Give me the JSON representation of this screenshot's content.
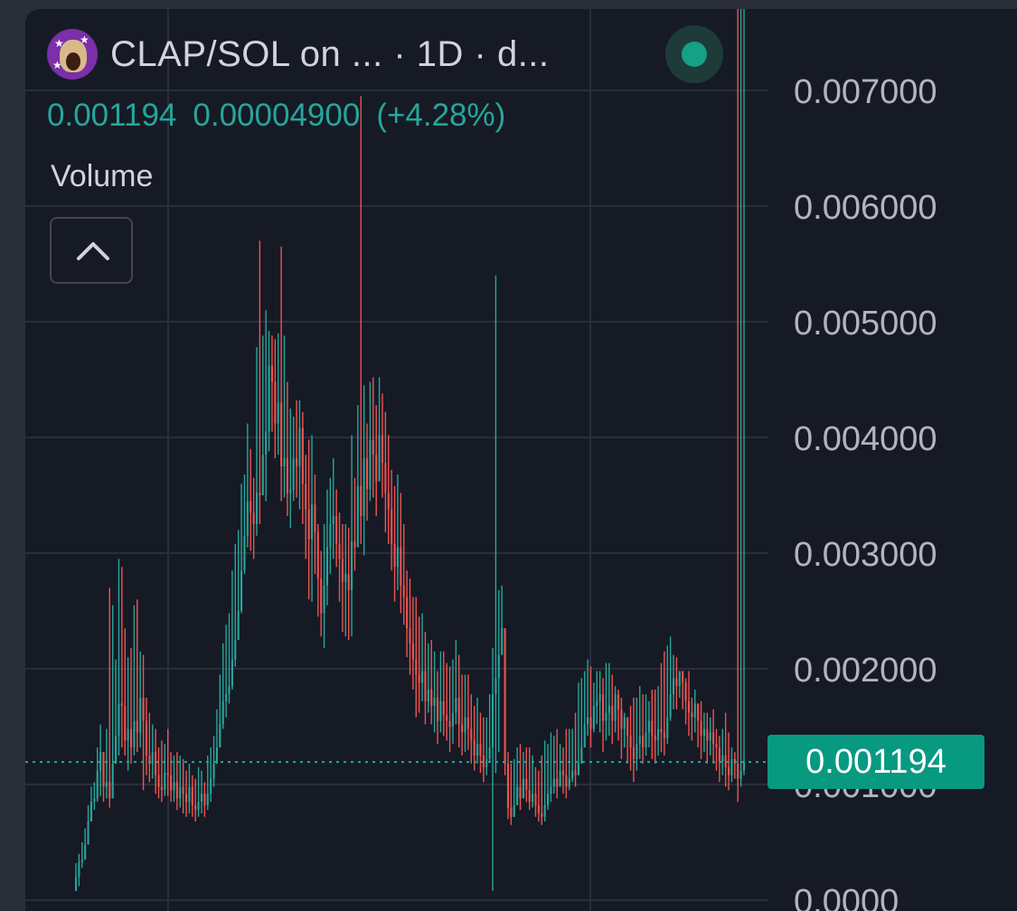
{
  "header": {
    "title": "CLAP/SOL on ... · 1D · d...",
    "logo_icon": "clap-token-logo",
    "live_indicator_icon": "live-status-dot"
  },
  "ohlc": {
    "last_price": "0.001194",
    "change": "0.00004900",
    "change_pct": "(+4.28%)"
  },
  "volume_label": "Volume",
  "collapse_icon": "chevron-up-icon",
  "colors": {
    "background": "#161a25",
    "up": "#26a69a",
    "down": "#ef5350",
    "grid": "#2a2e39",
    "axis_text": "#b2b5be",
    "price_tag": "#089981"
  },
  "chart_data": {
    "type": "candlestick",
    "title": "CLAP/SOL on ... · 1D · d...",
    "xlabel": "",
    "ylabel": "",
    "ylim": [
      0,
      0.0072
    ],
    "y_ticks": [
      "0.007000",
      "0.006000",
      "0.005000",
      "0.004000",
      "0.003000",
      "0.002000",
      "0.001000",
      "0.0000"
    ],
    "current_price": 0.001194,
    "current_price_label": "0.001194",
    "grid": true,
    "series": [
      {
        "values": [
          0.0002,
          0.00033,
          0.00035,
          0.00048,
          0.00068,
          0.00085,
          0.00088,
          0.00112,
          0.00128,
          0.00098,
          0.00102,
          0.00088,
          0.00118,
          0.00142,
          0.0017,
          0.00168,
          0.00138,
          0.00148,
          0.00132,
          0.00155,
          0.00145,
          0.00175,
          0.00155,
          0.00125,
          0.00118,
          0.00128,
          0.00108,
          0.00098,
          0.00095,
          0.0011,
          0.00108,
          0.00095,
          0.00102,
          0.00088,
          0.00098,
          0.00092,
          0.00085,
          0.00098,
          0.00082,
          0.00078,
          0.00085,
          0.00092,
          0.00082,
          0.00092,
          0.00105,
          0.00118,
          0.00132,
          0.00152,
          0.00172,
          0.00178,
          0.00185,
          0.00208,
          0.00225,
          0.0025,
          0.00285,
          0.00315,
          0.00345,
          0.00335,
          0.00325,
          0.00352,
          0.0035,
          0.00385,
          0.00405,
          0.00462,
          0.00448,
          0.00412,
          0.0043,
          0.00375,
          0.00382,
          0.00352,
          0.00355,
          0.00382,
          0.00375,
          0.00408,
          0.0036,
          0.00338,
          0.00312,
          0.00342,
          0.00318,
          0.00278,
          0.00248,
          0.00272,
          0.00305,
          0.00325,
          0.00332,
          0.00308,
          0.00295,
          0.00275,
          0.00282,
          0.00268,
          0.0031,
          0.00305,
          0.00358,
          0.00332,
          0.00382,
          0.00355,
          0.00398,
          0.00385,
          0.00362,
          0.00402,
          0.00378,
          0.00352,
          0.00338,
          0.00308,
          0.00288,
          0.00305,
          0.00272,
          0.00262,
          0.00235,
          0.00222,
          0.00208,
          0.00195,
          0.00188,
          0.00198,
          0.00172,
          0.00182,
          0.00168,
          0.00175,
          0.00155,
          0.00172,
          0.0016,
          0.00155,
          0.0015,
          0.00162,
          0.00175,
          0.00152,
          0.00145,
          0.00158,
          0.00148,
          0.00138,
          0.00125,
          0.00135,
          0.00125,
          0.00115,
          0.00122,
          0.00132,
          0.00178,
          0.00192,
          0.00212,
          0.00235,
          0.00118,
          0.0008,
          0.00072,
          0.00082,
          0.00098,
          0.00088,
          0.00105,
          0.00095,
          0.00085,
          0.00092,
          0.00082,
          0.00075,
          0.00072,
          0.00082,
          0.00092,
          0.00098,
          0.00105,
          0.00098,
          0.00112,
          0.00108,
          0.00098,
          0.00105,
          0.00112,
          0.00108,
          0.00118,
          0.00132,
          0.00152,
          0.00158,
          0.00148,
          0.00168,
          0.00172,
          0.00178,
          0.00155,
          0.00162,
          0.00168,
          0.00155,
          0.00178,
          0.00165,
          0.00148,
          0.00158,
          0.00142,
          0.00132,
          0.00122,
          0.00135,
          0.00142,
          0.00132,
          0.00145,
          0.00155,
          0.00142,
          0.00138,
          0.00148,
          0.00145,
          0.0014,
          0.00158,
          0.00178,
          0.00192,
          0.00185,
          0.00198,
          0.00188,
          0.00172,
          0.00162,
          0.00158,
          0.0017,
          0.00155,
          0.00142,
          0.00148,
          0.00138,
          0.00145,
          0.00135,
          0.00132,
          0.0012,
          0.00125,
          0.00115,
          0.00108,
          0.00122,
          0.00118,
          0.00105,
          0.00112,
          0.001194
        ],
        "highs": [
          0.00032,
          0.0004,
          0.0005,
          0.00062,
          0.00082,
          0.00098,
          0.00102,
          0.00132,
          0.00152,
          0.00118,
          0.00148,
          0.0027,
          0.00255,
          0.00208,
          0.00295,
          0.00288,
          0.00235,
          0.0021,
          0.00218,
          0.00255,
          0.0026,
          0.00215,
          0.00212,
          0.00175,
          0.00162,
          0.00152,
          0.00148,
          0.00132,
          0.00138,
          0.00135,
          0.00148,
          0.00128,
          0.00125,
          0.00128,
          0.00125,
          0.00122,
          0.00112,
          0.00118,
          0.00108,
          0.00105,
          0.00115,
          0.00112,
          0.00102,
          0.00125,
          0.00132,
          0.00142,
          0.00165,
          0.00195,
          0.00222,
          0.00238,
          0.00248,
          0.00285,
          0.00308,
          0.0032,
          0.0036,
          0.00368,
          0.00412,
          0.0039,
          0.00365,
          0.00478,
          0.0057,
          0.00488,
          0.0051,
          0.00492,
          0.00488,
          0.00485,
          0.0049,
          0.00565,
          0.00488,
          0.00448,
          0.00425,
          0.00418,
          0.00432,
          0.00432,
          0.00422,
          0.00385,
          0.00398,
          0.00402,
          0.00368,
          0.00325,
          0.00302,
          0.00325,
          0.00355,
          0.00365,
          0.00382,
          0.00355,
          0.00335,
          0.00325,
          0.00325,
          0.00322,
          0.00402,
          0.00365,
          0.00428,
          0.00695,
          0.00445,
          0.00412,
          0.00448,
          0.00452,
          0.00428,
          0.00452,
          0.00438,
          0.00422,
          0.00402,
          0.00372,
          0.00358,
          0.00368,
          0.00352,
          0.00325,
          0.00285,
          0.00278,
          0.00262,
          0.00262,
          0.00245,
          0.00248,
          0.00232,
          0.00222,
          0.00225,
          0.00215,
          0.00198,
          0.00215,
          0.00215,
          0.00205,
          0.00202,
          0.00208,
          0.00225,
          0.00212,
          0.00195,
          0.00195,
          0.00195,
          0.00178,
          0.00168,
          0.00175,
          0.00162,
          0.00158,
          0.00158,
          0.00178,
          0.00218,
          0.0054,
          0.00268,
          0.00272,
          0.00148,
          0.00128,
          0.00118,
          0.00122,
          0.00132,
          0.00135,
          0.00128,
          0.00132,
          0.00132,
          0.00125,
          0.00115,
          0.00112,
          0.00125,
          0.00138,
          0.00135,
          0.00145,
          0.00142,
          0.00148,
          0.00135,
          0.00132,
          0.00148,
          0.00148,
          0.00148,
          0.00162,
          0.00188,
          0.00192,
          0.00198,
          0.00208,
          0.00202,
          0.00188,
          0.00198,
          0.00198,
          0.00192,
          0.00205,
          0.00205,
          0.00195,
          0.00185,
          0.00182,
          0.00175,
          0.00162,
          0.00158,
          0.00168,
          0.00175,
          0.00175,
          0.00185,
          0.00178,
          0.00178,
          0.00172,
          0.00182,
          0.00182,
          0.00185,
          0.00205,
          0.00215,
          0.0022,
          0.00228,
          0.00212,
          0.0021,
          0.00198,
          0.00195,
          0.00192,
          0.00198,
          0.00175,
          0.00182,
          0.00168,
          0.00172,
          0.00162,
          0.00162,
          0.00158,
          0.00165,
          0.00148,
          0.00142,
          0.00148,
          0.00162,
          0.00145,
          0.00132,
          0.00128
        ],
        "lows": [
          8e-05,
          0.00012,
          0.00028,
          0.00038,
          0.00052,
          0.00075,
          0.00078,
          0.00085,
          0.0009,
          0.00085,
          0.00088,
          0.0008,
          0.00098,
          0.00118,
          0.00125,
          0.00132,
          0.00125,
          0.00112,
          0.00118,
          0.00125,
          0.00128,
          0.00132,
          0.00095,
          0.00108,
          0.00102,
          0.00105,
          0.00092,
          0.00088,
          0.00085,
          0.0009,
          0.0009,
          0.00085,
          0.00085,
          0.00078,
          0.0008,
          0.00075,
          0.00072,
          0.00075,
          0.00072,
          0.00068,
          0.00072,
          0.00075,
          0.00072,
          0.00078,
          0.00085,
          0.00098,
          0.00118,
          0.00132,
          0.00148,
          0.00158,
          0.0017,
          0.00182,
          0.00202,
          0.00228,
          0.00248,
          0.00282,
          0.00305,
          0.00302,
          0.00295,
          0.00315,
          0.00325,
          0.00362,
          0.00345,
          0.00388,
          0.00405,
          0.00382,
          0.00385,
          0.00345,
          0.00348,
          0.00332,
          0.00322,
          0.00345,
          0.00348,
          0.00338,
          0.00325,
          0.00295,
          0.0026,
          0.00258,
          0.00282,
          0.00245,
          0.00228,
          0.00218,
          0.00255,
          0.00282,
          0.00295,
          0.00288,
          0.00258,
          0.00232,
          0.00228,
          0.00225,
          0.00228,
          0.00285,
          0.00325,
          0.00308,
          0.00298,
          0.00328,
          0.00345,
          0.00348,
          0.00332,
          0.00362,
          0.00348,
          0.00318,
          0.00308,
          0.00285,
          0.00258,
          0.00268,
          0.00248,
          0.00238,
          0.0021,
          0.00195,
          0.00182,
          0.00158,
          0.00162,
          0.00172,
          0.00152,
          0.00162,
          0.00152,
          0.00145,
          0.00135,
          0.00145,
          0.00142,
          0.00138,
          0.00128,
          0.00135,
          0.00152,
          0.00132,
          0.00125,
          0.00128,
          0.0013,
          0.00118,
          0.00112,
          0.00118,
          0.0011,
          0.00102,
          0.00108,
          0.0012,
          8e-05,
          0.0011,
          0.00128,
          0.00215,
          0.00108,
          0.0007,
          0.00065,
          0.00072,
          0.00082,
          0.00078,
          0.00092,
          0.00085,
          0.00078,
          0.0008,
          0.00072,
          0.00068,
          0.00065,
          0.00068,
          0.00078,
          0.00085,
          0.00092,
          0.00088,
          0.00098,
          0.00092,
          0.00088,
          0.00095,
          0.00102,
          0.00098,
          0.00108,
          0.00118,
          0.00132,
          0.00142,
          0.00132,
          0.00145,
          0.00152,
          0.00145,
          0.00128,
          0.00138,
          0.00142,
          0.00135,
          0.00145,
          0.00138,
          0.00122,
          0.00132,
          0.00118,
          0.00112,
          0.00102,
          0.00112,
          0.00122,
          0.00118,
          0.00125,
          0.00132,
          0.00122,
          0.00118,
          0.00125,
          0.00128,
          0.00125,
          0.00135,
          0.00155,
          0.00165,
          0.00165,
          0.00175,
          0.00165,
          0.00152,
          0.00142,
          0.00138,
          0.00145,
          0.00132,
          0.00122,
          0.00128,
          0.00118,
          0.00125,
          0.00118,
          0.00112,
          0.00102,
          0.00108,
          0.00098,
          0.00095,
          0.00102,
          0.00105,
          0.00085,
          0.00098,
          0.00108
        ]
      }
    ]
  }
}
